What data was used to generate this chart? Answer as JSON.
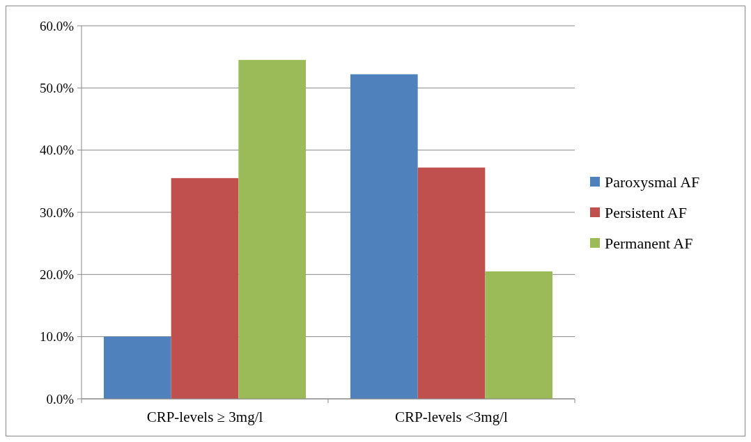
{
  "chart_data": {
    "type": "bar",
    "categories": [
      "CRP-levels ≥ 3mg/l",
      "CRP-levels <3mg/l"
    ],
    "series": [
      {
        "name": "Paroxysmal AF",
        "color": "#4f81bd",
        "values": [
          10.0,
          52.2
        ]
      },
      {
        "name": "Persistent AF",
        "color": "#c0504d",
        "values": [
          35.5,
          37.2
        ]
      },
      {
        "name": "Permanent AF",
        "color": "#9bbb59",
        "values": [
          54.5,
          20.5
        ]
      }
    ],
    "ylim": [
      0,
      60
    ],
    "yticks": [
      {
        "value": 0,
        "label": "0.0%"
      },
      {
        "value": 10,
        "label": "10.0%"
      },
      {
        "value": 20,
        "label": "20.0%"
      },
      {
        "value": 30,
        "label": "30.0%"
      },
      {
        "value": 40,
        "label": "40.0%"
      },
      {
        "value": 50,
        "label": "50.0%"
      },
      {
        "value": 60,
        "label": "60.0%"
      }
    ],
    "grid": "y",
    "legend": "right"
  }
}
